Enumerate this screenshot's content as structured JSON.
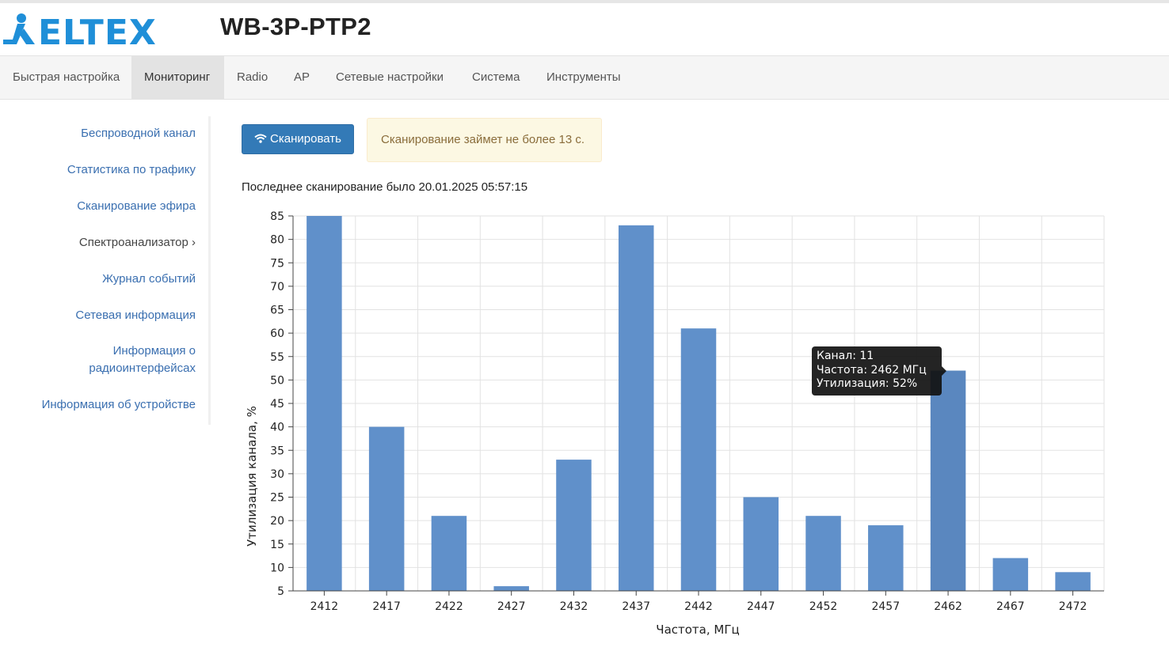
{
  "header": {
    "logo_text": "ELTEX",
    "device_title": "WB-3P-PTP2",
    "brand_color": "#1f8fd8"
  },
  "nav": {
    "items": [
      {
        "label": "Быстрая настройка"
      },
      {
        "label": "Мониторинг",
        "active": true
      },
      {
        "label": "Radio"
      },
      {
        "label": "AP"
      },
      {
        "label": "Сетевые настройки"
      },
      {
        "label": "Система"
      },
      {
        "label": "Инструменты"
      }
    ]
  },
  "sidebar": {
    "items": [
      {
        "label": "Беспроводной канал"
      },
      {
        "label": "Статистика по трафику"
      },
      {
        "label": "Сканирование эфира"
      },
      {
        "label": "Спектроанализатор ›"
      },
      {
        "label": "Журнал событий"
      },
      {
        "label": "Сетевая информация"
      },
      {
        "label_line1": "Информация о",
        "label_line2": "радиоинтерфейсах"
      },
      {
        "label": "Информация об устройстве"
      }
    ]
  },
  "main": {
    "scan_button": {
      "label": "Сканировать",
      "icon": "wifi-icon"
    },
    "alert_text": "Сканирование займет не более 13 с.",
    "last_scan_text": "Последнее сканирование было 20.01.2025 05:57:15"
  },
  "tooltip": {
    "line1": "Канал: 11",
    "line2": "Частота: 2462 МГц",
    "line3": "Утилизация: 52%"
  },
  "chart_data": {
    "type": "bar",
    "categories": [
      "2412",
      "2417",
      "2422",
      "2427",
      "2432",
      "2437",
      "2442",
      "2447",
      "2452",
      "2457",
      "2462",
      "2467",
      "2472"
    ],
    "values": [
      85,
      40,
      21,
      6,
      33,
      83,
      61,
      25,
      21,
      19,
      52,
      12,
      9
    ],
    "xlabel": "Частота, МГц",
    "ylabel": "Утилизация канала, %",
    "ylim": [
      5,
      85
    ],
    "yticks": [
      5,
      10,
      15,
      20,
      25,
      30,
      35,
      40,
      45,
      50,
      55,
      60,
      65,
      70,
      75,
      80,
      85
    ],
    "grid": true,
    "bar_color": "#6090ca",
    "highlight_bar_color": "#5a87bf"
  }
}
